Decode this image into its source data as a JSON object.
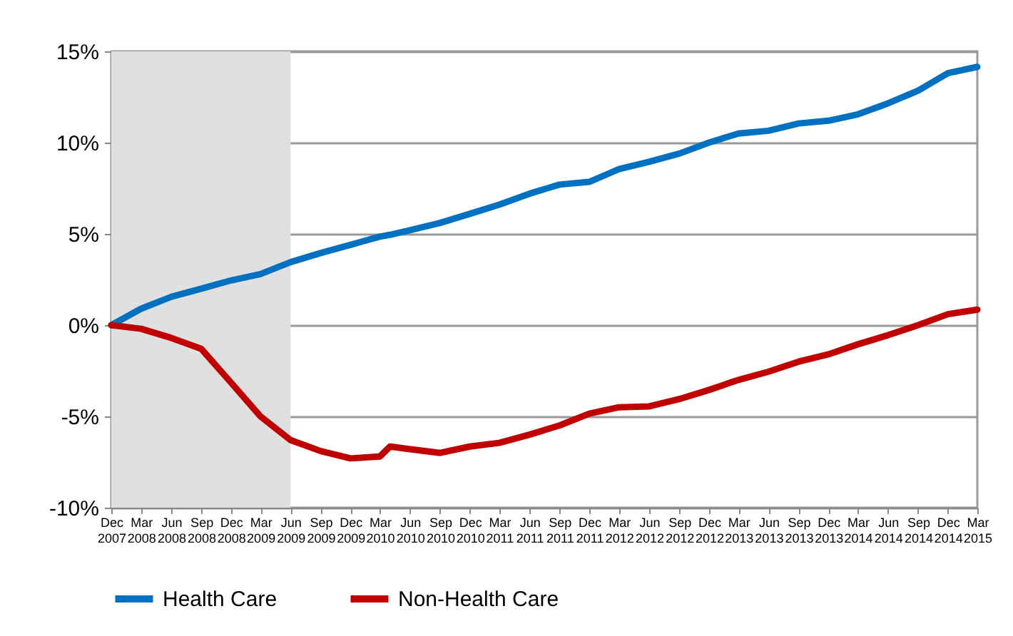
{
  "chart_data": {
    "type": "line",
    "x": [
      "2007-12",
      "2008-03",
      "2008-06",
      "2008-09",
      "2008-12",
      "2009-03",
      "2009-06",
      "2009-09",
      "2009-12",
      "2010-03",
      "2010-04",
      "2010-06",
      "2010-09",
      "2010-12",
      "2011-03",
      "2011-06",
      "2011-09",
      "2011-12",
      "2012-03",
      "2012-06",
      "2012-09",
      "2012-12",
      "2013-03",
      "2013-06",
      "2013-09",
      "2013-12",
      "2014-03",
      "2014-06",
      "2014-09",
      "2014-12",
      "2015-03"
    ],
    "series": [
      {
        "name": "Health Care",
        "color": "#0070c0",
        "values": [
          0,
          0.9,
          1.55,
          2.0,
          2.45,
          2.8,
          3.45,
          3.95,
          4.4,
          4.85,
          4.95,
          5.2,
          5.6,
          6.1,
          6.6,
          7.2,
          7.7,
          7.85,
          8.55,
          8.95,
          9.4,
          10.0,
          10.5,
          10.65,
          11.05,
          11.2,
          11.55,
          12.15,
          12.85,
          13.8,
          14.15
        ]
      },
      {
        "name": "Non-Health Care",
        "color": "#c00000",
        "values": [
          0,
          -0.2,
          -0.7,
          -1.3,
          -3.15,
          -5.0,
          -6.3,
          -6.9,
          -7.3,
          -7.2,
          -6.65,
          -6.8,
          -7.0,
          -6.65,
          -6.45,
          -6.0,
          -5.5,
          -4.85,
          -4.5,
          -4.45,
          -4.05,
          -3.55,
          -3.0,
          -2.55,
          -2.0,
          -1.6,
          -1.05,
          -0.55,
          0.0,
          0.6,
          0.85
        ]
      }
    ],
    "xlim": [
      "2007-12",
      "2015-03"
    ],
    "xticks": [
      {
        "value": "2007-12",
        "label": "Dec 2007"
      },
      {
        "value": "2008-03",
        "label": "Mar 2008"
      },
      {
        "value": "2008-06",
        "label": "Jun 2008"
      },
      {
        "value": "2008-09",
        "label": "Sep 2008"
      },
      {
        "value": "2008-12",
        "label": "Dec 2008"
      },
      {
        "value": "2009-03",
        "label": "Mar 2009"
      },
      {
        "value": "2009-06",
        "label": "Jun 2009"
      },
      {
        "value": "2009-09",
        "label": "Sep 2009"
      },
      {
        "value": "2009-12",
        "label": "Dec 2009"
      },
      {
        "value": "2010-03",
        "label": "Mar 2010"
      },
      {
        "value": "2010-06",
        "label": "Jun 2010"
      },
      {
        "value": "2010-09",
        "label": "Sep 2010"
      },
      {
        "value": "2010-12",
        "label": "Dec 2010"
      },
      {
        "value": "2011-03",
        "label": "Mar 2011"
      },
      {
        "value": "2011-06",
        "label": "Jun 2011"
      },
      {
        "value": "2011-09",
        "label": "Sep 2011"
      },
      {
        "value": "2011-12",
        "label": "Dec 2011"
      },
      {
        "value": "2012-03",
        "label": "Mar 2012"
      },
      {
        "value": "2012-06",
        "label": "Jun 2012"
      },
      {
        "value": "2012-09",
        "label": "Sep 2012"
      },
      {
        "value": "2012-12",
        "label": "Dec 2012"
      },
      {
        "value": "2013-03",
        "label": "Mar 2013"
      },
      {
        "value": "2013-06",
        "label": "Jun 2013"
      },
      {
        "value": "2013-09",
        "label": "Sep 2013"
      },
      {
        "value": "2013-12",
        "label": "Dec 2013"
      },
      {
        "value": "2014-03",
        "label": "Mar 2014"
      },
      {
        "value": "2014-06",
        "label": "Jun 2014"
      },
      {
        "value": "2014-09",
        "label": "Sep 2014"
      },
      {
        "value": "2014-12",
        "label": "Dec 2014"
      },
      {
        "value": "2015-03",
        "label": "Mar 2015"
      }
    ],
    "ylim": [
      -10,
      15
    ],
    "yticks": [
      {
        "value": -10,
        "label": "-10%"
      },
      {
        "value": -5,
        "label": "-5%"
      },
      {
        "value": 0,
        "label": "0%"
      },
      {
        "value": 5,
        "label": "5%"
      },
      {
        "value": 10,
        "label": "10%"
      },
      {
        "value": 15,
        "label": "15%"
      }
    ],
    "bands": [
      {
        "axis": "x",
        "from": "2007-12",
        "to": "2009-06",
        "color": "#e0e0e0"
      }
    ],
    "grid": "y",
    "legend": "bottom",
    "marker": "none",
    "line_style": "solid"
  }
}
